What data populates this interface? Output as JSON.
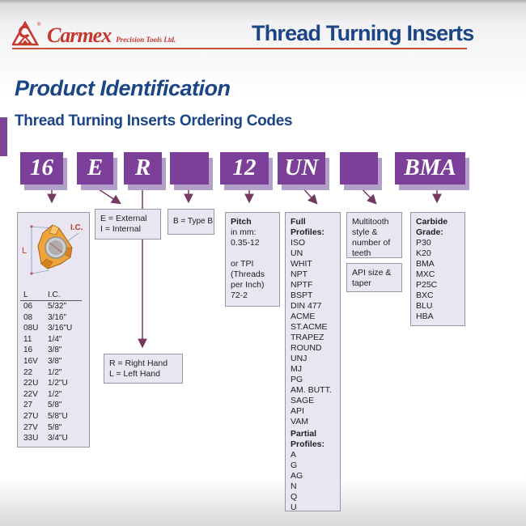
{
  "header": {
    "brand": "Carmex",
    "brand_sub": "Precision Tools Ltd.",
    "page_title": "Thread Turning Inserts"
  },
  "section": {
    "title": "Product Identification",
    "subtitle": "Thread Turning Inserts Ordering Codes"
  },
  "colors": {
    "purple": "#7c3f9a",
    "purple_shadow": "#b2a0c8",
    "heading_blue": "#1b4586",
    "brand_red": "#c6392f",
    "arrow": "#74395f",
    "box_fill": "#e9e6f2"
  },
  "code_boxes": [
    {
      "label": "16"
    },
    {
      "label": "E"
    },
    {
      "label": "R"
    },
    {
      "label": ""
    },
    {
      "label": "12"
    },
    {
      "label": "UN"
    },
    {
      "label": ""
    },
    {
      "label": "BMA"
    }
  ],
  "insert_box": {
    "dim_l": "L",
    "dim_ic": "I.C.",
    "table": {
      "col_l": "L",
      "col_ic": "I.C.",
      "rows": [
        [
          "06",
          "5/32\""
        ],
        [
          "08",
          "3/16\""
        ],
        [
          "08U",
          "3/16\"U"
        ],
        [
          "11",
          "1/4\""
        ],
        [
          "16",
          "3/8\""
        ],
        [
          "16V",
          "3/8\""
        ],
        [
          "22",
          "1/2\""
        ],
        [
          "22U",
          "1/2\"U"
        ],
        [
          "22V",
          "1/2\""
        ],
        [
          "27",
          "5/8\""
        ],
        [
          "27U",
          "5/8\"U"
        ],
        [
          "27V",
          "5/8\""
        ],
        [
          "33U",
          "3/4\"U"
        ]
      ]
    }
  },
  "external_box": {
    "line1": "E = External",
    "line2": "I  = Internal"
  },
  "type_box": {
    "label": "B = Type B"
  },
  "hand_box": {
    "line1": "R = Right Hand",
    "line2": "L = Left Hand"
  },
  "pitch_box": {
    "title": "Pitch",
    "lines": [
      "in mm:",
      "0.35-12",
      "",
      "or TPI",
      "(Threads",
      "per Inch)",
      "72-2"
    ]
  },
  "profiles_box": {
    "full_title": "Full Profiles:",
    "full": [
      "ISO",
      "UN",
      "WHIT",
      "NPT",
      "NPTF",
      "BSPT",
      "DIN 477",
      "ACME",
      "ST.ACME",
      "TRAPEZ",
      "ROUND",
      "UNJ",
      "MJ",
      "PG",
      "AM. BUTT.",
      "SAGE",
      "API",
      "VAM"
    ],
    "partial_title": "Partial Profiles:",
    "partial": [
      "A",
      "G",
      "AG",
      "N",
      "Q",
      "U"
    ]
  },
  "multitooth_box": {
    "text": "Multitooth style & number of teeth"
  },
  "api_box": {
    "text": "API size & taper"
  },
  "carbide_box": {
    "title": "Carbide Grade:",
    "grades": [
      "P30",
      "K20",
      "BMA",
      "MXC",
      "P25C",
      "BXC",
      "BLU",
      "HBA"
    ]
  }
}
